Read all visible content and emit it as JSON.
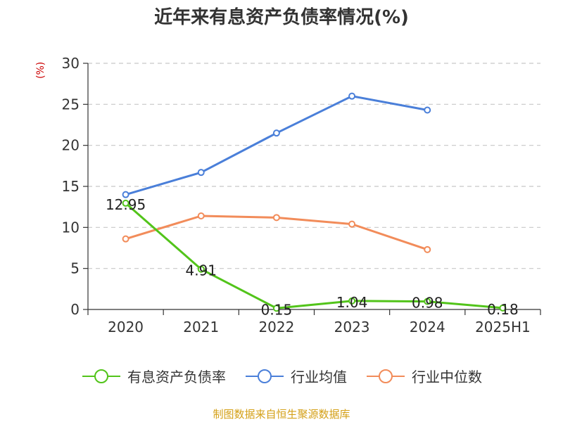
{
  "title": "近年来有息资产负债率情况(%)",
  "unit_label": "(%)",
  "source": "制图数据来自恒生聚源数据库",
  "chart_data": {
    "type": "line",
    "title": "近年来有息资产负债率情况(%)",
    "ylabel": "(%)",
    "categories": [
      "2020",
      "2021",
      "2022",
      "2023",
      "2024",
      "2025H1"
    ],
    "ylim": [
      0,
      30
    ],
    "yticks": [
      0,
      5,
      10,
      15,
      20,
      25,
      30
    ],
    "grid": true,
    "legend_position": "bottom",
    "series": [
      {
        "name": "有息资产负债率",
        "color": "#52c41a",
        "values": [
          12.95,
          4.91,
          0.15,
          1.04,
          0.98,
          0.18
        ],
        "labels": [
          "12.95",
          "4.91",
          "0.15",
          "1.04",
          "0.98",
          "0.18"
        ]
      },
      {
        "name": "行业均值",
        "color": "#4a7fd9",
        "values": [
          14.0,
          16.7,
          21.5,
          26.0,
          24.3,
          null
        ]
      },
      {
        "name": "行业中位数",
        "color": "#f28c5a",
        "values": [
          8.6,
          11.4,
          11.2,
          10.4,
          7.3,
          null
        ]
      }
    ]
  }
}
